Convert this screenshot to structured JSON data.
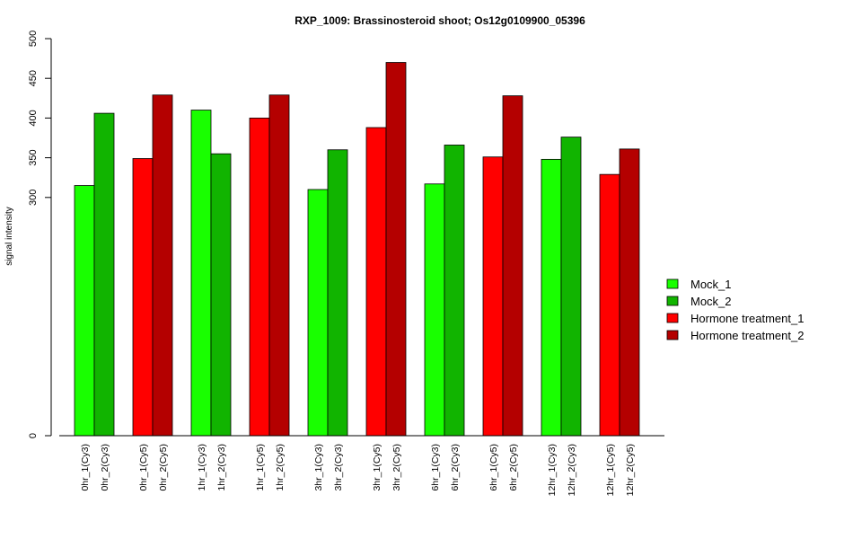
{
  "chart_data": {
    "type": "bar",
    "title": "RXP_1009: Brassinosteroid shoot; Os12g0109900_05396",
    "xlabel": "",
    "ylabel": "signal intensity",
    "yticks": [
      0,
      300,
      350,
      400,
      450,
      500
    ],
    "ylim": [
      0,
      500
    ],
    "categories": [
      "0hr_1(Cy3)",
      "0hr_2(Cy3)",
      "0hr_1(Cy5)",
      "0hr_2(Cy5)",
      "1hr_1(Cy3)",
      "1hr_2(Cy3)",
      "1hr_1(Cy5)",
      "1hr_2(Cy5)",
      "3hr_1(Cy3)",
      "3hr_2(Cy3)",
      "3hr_1(Cy5)",
      "3hr_2(Cy5)",
      "6hr_1(Cy3)",
      "6hr_2(Cy3)",
      "6hr_1(Cy5)",
      "6hr_2(Cy5)",
      "12hr_1(Cy3)",
      "12hr_2(Cy3)",
      "12hr_1(Cy5)",
      "12hr_2(Cy5)"
    ],
    "values": [
      315,
      406,
      349,
      429,
      410,
      355,
      400,
      429,
      310,
      360,
      388,
      470,
      317,
      366,
      351,
      428,
      348,
      376,
      329,
      361
    ],
    "bar_series": [
      0,
      1,
      2,
      3,
      0,
      1,
      2,
      3,
      0,
      1,
      2,
      3,
      0,
      1,
      2,
      3,
      0,
      1,
      2,
      3
    ],
    "series": [
      {
        "name": "Mock_1",
        "color": "#19ff00"
      },
      {
        "name": "Mock_2",
        "color": "#11b400"
      },
      {
        "name": "Hormone treatment_1",
        "color": "#ff0000"
      },
      {
        "name": "Hormone treatment_2",
        "color": "#b40000"
      }
    ],
    "legend_position": "right",
    "grid": false
  }
}
